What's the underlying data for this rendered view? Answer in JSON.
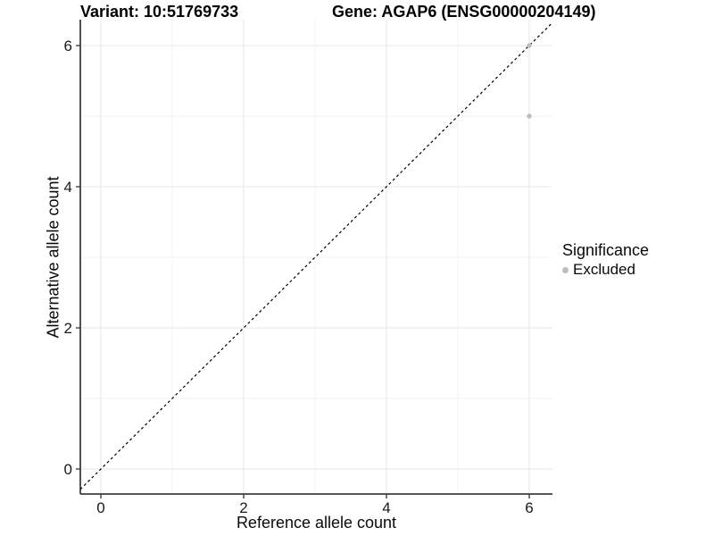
{
  "titles": {
    "variant": "Variant: 10:51769733",
    "gene": "Gene: AGAP6 (ENSG00000204149)"
  },
  "axes": {
    "x_label": "Reference allele count",
    "y_label": "Alternative allele count"
  },
  "legend": {
    "title": "Significance",
    "items": [
      {
        "label": "Excluded",
        "color": "#bdbdbd"
      }
    ]
  },
  "chart_data": {
    "type": "scatter",
    "title": "",
    "xlabel": "Reference allele count",
    "ylabel": "Alternative allele count",
    "xlim": [
      -0.2875,
      6.325
    ],
    "ylim": [
      -0.354,
      6.367
    ],
    "x_ticks": [
      0,
      2,
      4,
      6
    ],
    "y_ticks": [
      0,
      2,
      4,
      6
    ],
    "x_minor_ticks": [
      1,
      3,
      5
    ],
    "y_minor_ticks": [
      1,
      3,
      5
    ],
    "grid": true,
    "legend_position": "right",
    "series": [
      {
        "name": "Excluded",
        "color": "#bdbdbd",
        "points": [
          [
            6,
            6
          ],
          [
            6,
            5
          ]
        ]
      }
    ],
    "abline": {
      "slope": 1,
      "intercept": 0,
      "style": "dashed",
      "color": "#000000"
    },
    "colors": {
      "background": "#ffffff",
      "major_grid": "#e8e8e8",
      "minor_grid": "#f2f2f2",
      "axis_line": "#3f3f3f",
      "tick_text": "#1a1a1a"
    }
  }
}
